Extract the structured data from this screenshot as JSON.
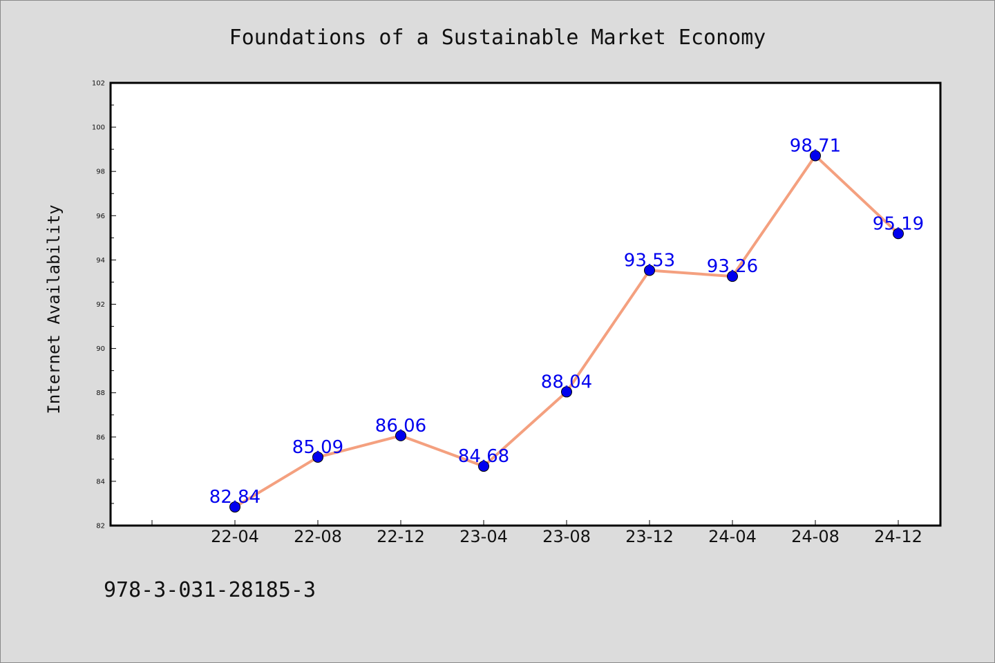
{
  "chart_data": {
    "type": "line",
    "title": "Foundations of a Sustainable Market Economy",
    "xlabel": "",
    "ylabel": "Internet Availability",
    "categories": [
      "22-04",
      "22-08",
      "22-12",
      "23-04",
      "23-08",
      "23-12",
      "24-04",
      "24-08",
      "24-12"
    ],
    "series": [
      {
        "values": [
          82.84,
          85.09,
          86.06,
          84.68,
          88.04,
          93.53,
          93.26,
          98.71,
          95.19
        ],
        "labels": [
          "82.84",
          "85.09",
          "86.06",
          "84.68",
          "88.04",
          "93.53",
          "93.26",
          "98.71",
          "95.19"
        ],
        "line_color": "#f4a07f",
        "marker_color": "#0000ee"
      }
    ],
    "ylim": [
      82,
      102
    ],
    "yticks": [
      "82",
      "84",
      "86",
      "88",
      "90",
      "92",
      "94",
      "96",
      "98",
      "100",
      "102"
    ],
    "grid": false,
    "legend": "none"
  },
  "footer": {
    "isbn": "978-3-031-28185-3"
  }
}
